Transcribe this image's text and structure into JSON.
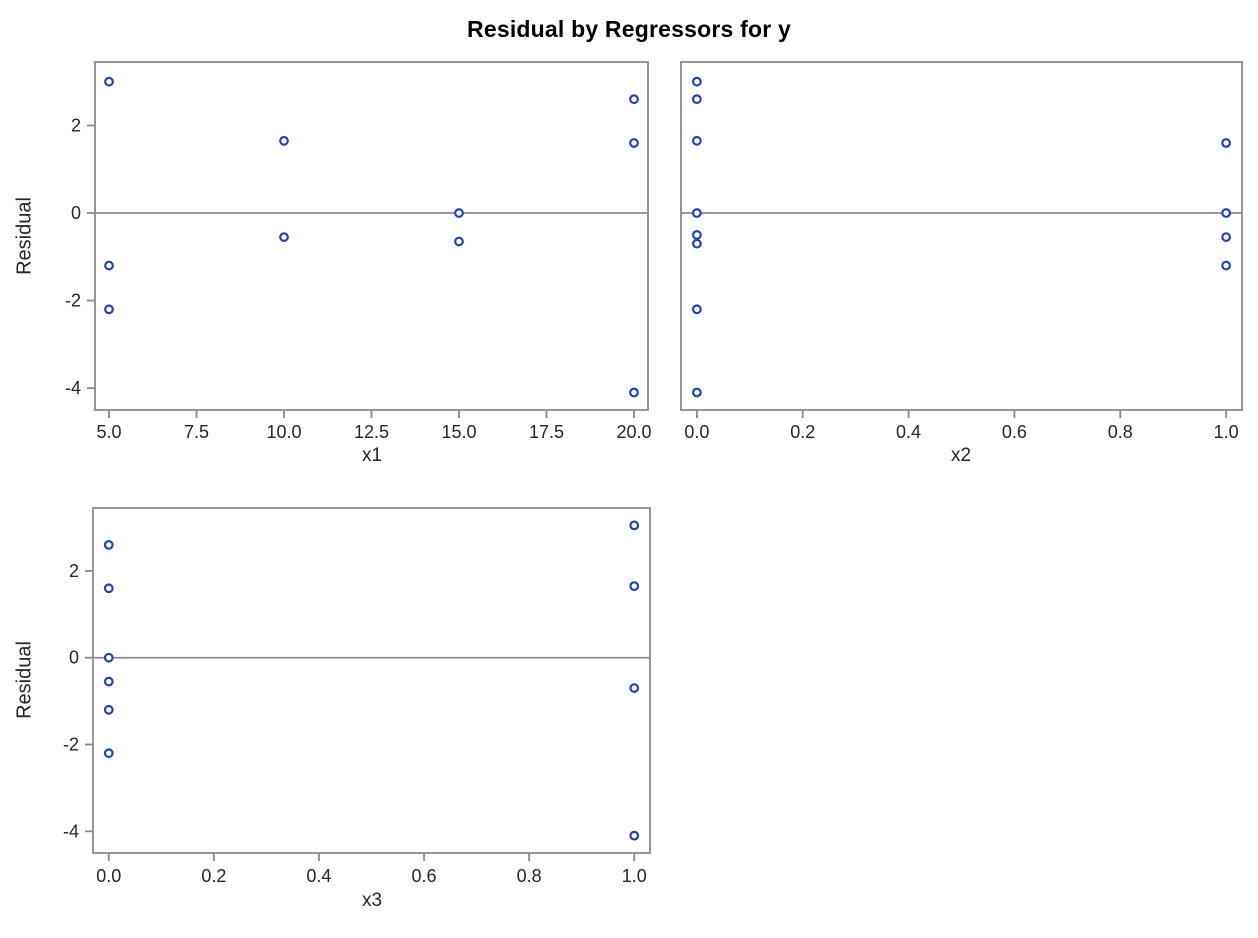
{
  "title": "Residual by Regressors for y",
  "colors": {
    "marker": "#2343ae",
    "axis": "#8a8a8a",
    "text": "#262626",
    "background": "#ffffff"
  },
  "chart_data": [
    {
      "type": "scatter",
      "panel": "top-left",
      "xlabel": "x1",
      "ylabel": "Residual",
      "xlim": [
        4.6,
        20.4
      ],
      "ylim": [
        -4.5,
        3.45
      ],
      "xticks": [
        5.0,
        7.5,
        10.0,
        12.5,
        15.0,
        17.5,
        20.0
      ],
      "xtick_labels": [
        "5.0",
        "7.5",
        "10.0",
        "12.5",
        "15.0",
        "17.5",
        "20.0"
      ],
      "yticks": [
        -4,
        -2,
        0,
        2
      ],
      "ytick_labels": [
        "-4",
        "-2",
        "0",
        "2"
      ],
      "refline_y": 0,
      "grid": false,
      "points": [
        {
          "x": 5,
          "y": 3.0
        },
        {
          "x": 5,
          "y": -1.2
        },
        {
          "x": 5,
          "y": -2.2
        },
        {
          "x": 10,
          "y": 1.65
        },
        {
          "x": 10,
          "y": -0.55
        },
        {
          "x": 15,
          "y": 0.0
        },
        {
          "x": 15,
          "y": -0.65
        },
        {
          "x": 20,
          "y": 2.6
        },
        {
          "x": 20,
          "y": 1.6
        },
        {
          "x": 20,
          "y": -4.1
        }
      ]
    },
    {
      "type": "scatter",
      "panel": "top-right",
      "xlabel": "x2",
      "ylabel": "",
      "xlim": [
        -0.03,
        1.03
      ],
      "ylim": [
        -4.5,
        3.45
      ],
      "xticks": [
        0.0,
        0.2,
        0.4,
        0.6,
        0.8,
        1.0
      ],
      "xtick_labels": [
        "0.0",
        "0.2",
        "0.4",
        "0.6",
        "0.8",
        "1.0"
      ],
      "yticks": [
        -4,
        -2,
        0,
        2
      ],
      "ytick_labels": [
        "-4",
        "-2",
        "0",
        "2"
      ],
      "refline_y": 0,
      "grid": false,
      "points": [
        {
          "x": 0,
          "y": 3.0
        },
        {
          "x": 0,
          "y": 2.6
        },
        {
          "x": 0,
          "y": 1.65
        },
        {
          "x": 0,
          "y": 0.0
        },
        {
          "x": 0,
          "y": -0.5
        },
        {
          "x": 0,
          "y": -0.7
        },
        {
          "x": 0,
          "y": -2.2
        },
        {
          "x": 0,
          "y": -4.1
        },
        {
          "x": 1,
          "y": 1.6
        },
        {
          "x": 1,
          "y": 0.0
        },
        {
          "x": 1,
          "y": -0.55
        },
        {
          "x": 1,
          "y": -1.2
        }
      ]
    },
    {
      "type": "scatter",
      "panel": "bottom-left",
      "xlabel": "x3",
      "ylabel": "Residual",
      "xlim": [
        -0.03,
        1.03
      ],
      "ylim": [
        -4.5,
        3.45
      ],
      "xticks": [
        0.0,
        0.2,
        0.4,
        0.6,
        0.8,
        1.0
      ],
      "xtick_labels": [
        "0.0",
        "0.2",
        "0.4",
        "0.6",
        "0.8",
        "1.0"
      ],
      "yticks": [
        -4,
        -2,
        0,
        2
      ],
      "ytick_labels": [
        "-4",
        "-2",
        "0",
        "2"
      ],
      "refline_y": 0,
      "grid": false,
      "points": [
        {
          "x": 0,
          "y": 2.6
        },
        {
          "x": 0,
          "y": 1.6
        },
        {
          "x": 0,
          "y": 0.0
        },
        {
          "x": 0,
          "y": -0.55
        },
        {
          "x": 0,
          "y": -1.2
        },
        {
          "x": 0,
          "y": -2.2
        },
        {
          "x": 1,
          "y": 3.05
        },
        {
          "x": 1,
          "y": 1.65
        },
        {
          "x": 1,
          "y": -0.7
        },
        {
          "x": 1,
          "y": -4.1
        }
      ]
    }
  ]
}
